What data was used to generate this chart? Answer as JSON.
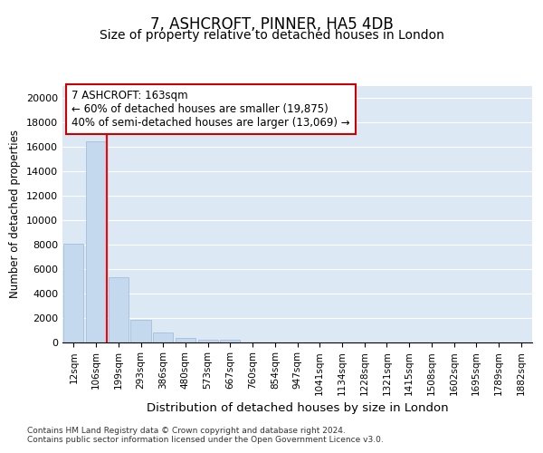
{
  "title1": "7, ASHCROFT, PINNER, HA5 4DB",
  "title2": "Size of property relative to detached houses in London",
  "xlabel": "Distribution of detached houses by size in London",
  "ylabel": "Number of detached properties",
  "categories": [
    "12sqm",
    "106sqm",
    "199sqm",
    "293sqm",
    "386sqm",
    "480sqm",
    "573sqm",
    "667sqm",
    "760sqm",
    "854sqm",
    "947sqm",
    "1041sqm",
    "1134sqm",
    "1228sqm",
    "1321sqm",
    "1415sqm",
    "1508sqm",
    "1602sqm",
    "1695sqm",
    "1789sqm",
    "1882sqm"
  ],
  "values": [
    8100,
    16500,
    5300,
    1800,
    750,
    300,
    200,
    200,
    0,
    0,
    0,
    0,
    0,
    0,
    0,
    0,
    0,
    0,
    0,
    0,
    0
  ],
  "bar_color": "#c5d9ee",
  "bar_edge_color": "#9ab8d8",
  "red_line_x": 1.5,
  "annotation_text": "7 ASHCROFT: 163sqm\n← 60% of detached houses are smaller (19,875)\n40% of semi-detached houses are larger (13,069) →",
  "box_facecolor": "#ffffff",
  "box_edgecolor": "#cc0000",
  "ylim": [
    0,
    21000
  ],
  "yticks": [
    0,
    2000,
    4000,
    6000,
    8000,
    10000,
    12000,
    14000,
    16000,
    18000,
    20000
  ],
  "bg_color": "#dce9f5",
  "grid_color": "#ffffff",
  "footer_text": "Contains HM Land Registry data © Crown copyright and database right 2024.\nContains public sector information licensed under the Open Government Licence v3.0.",
  "title1_fontsize": 12,
  "title2_fontsize": 10,
  "xlabel_fontsize": 9.5,
  "ylabel_fontsize": 8.5,
  "tick_fontsize": 8,
  "xtick_fontsize": 7.5,
  "footer_fontsize": 6.5,
  "annot_fontsize": 8.5
}
